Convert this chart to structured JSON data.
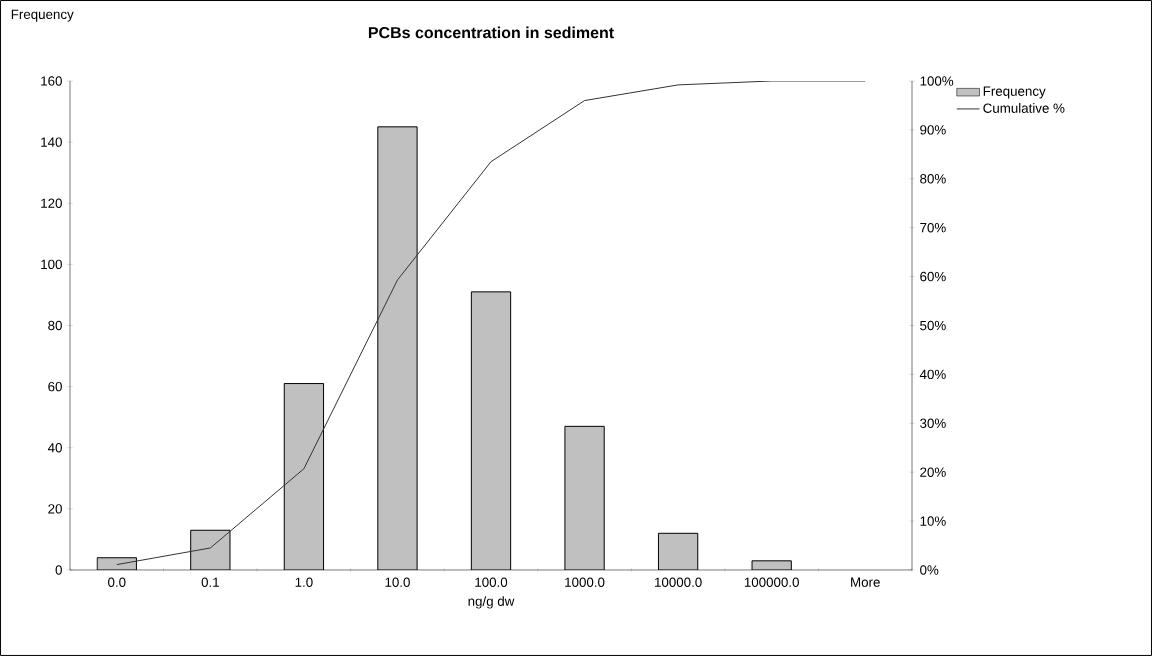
{
  "chart_data": {
    "type": "bar",
    "title": "PCBs concentration in sediment",
    "xlabel": "ng/g dw",
    "ylabel": "Frequency",
    "categories": [
      "0.0",
      "0.1",
      "1.0",
      "10.0",
      "100.0",
      "1000.0",
      "10000.0",
      "100000.0",
      "More"
    ],
    "series": [
      {
        "name": "Frequency",
        "color": "#c0c0c0",
        "values": [
          4,
          13,
          61,
          145,
          91,
          47,
          12,
          3,
          0
        ]
      },
      {
        "name": "Cumulative %",
        "type": "line",
        "axis": "y2",
        "color": "#333333",
        "values": [
          1.1,
          4.5,
          20.7,
          59.3,
          83.5,
          96.0,
          99.2,
          100,
          100
        ]
      }
    ],
    "ylim": [
      0,
      160
    ],
    "yticks": [
      0,
      20,
      40,
      60,
      80,
      100,
      120,
      140,
      160
    ],
    "y2lim": [
      0,
      100
    ],
    "y2ticks": [
      {
        "value": 0,
        "label": "0%"
      },
      {
        "value": 10,
        "label": "10%"
      },
      {
        "value": 20,
        "label": "20%"
      },
      {
        "value": 30,
        "label": "30%"
      },
      {
        "value": 40,
        "label": "40%"
      },
      {
        "value": 50,
        "label": "50%"
      },
      {
        "value": 60,
        "label": "60%"
      },
      {
        "value": 70,
        "label": "70%"
      },
      {
        "value": 80,
        "label": "80%"
      },
      {
        "value": 90,
        "label": "90%"
      },
      {
        "value": 100,
        "label": "100%"
      }
    ],
    "legend": "top right",
    "marker": "none"
  }
}
